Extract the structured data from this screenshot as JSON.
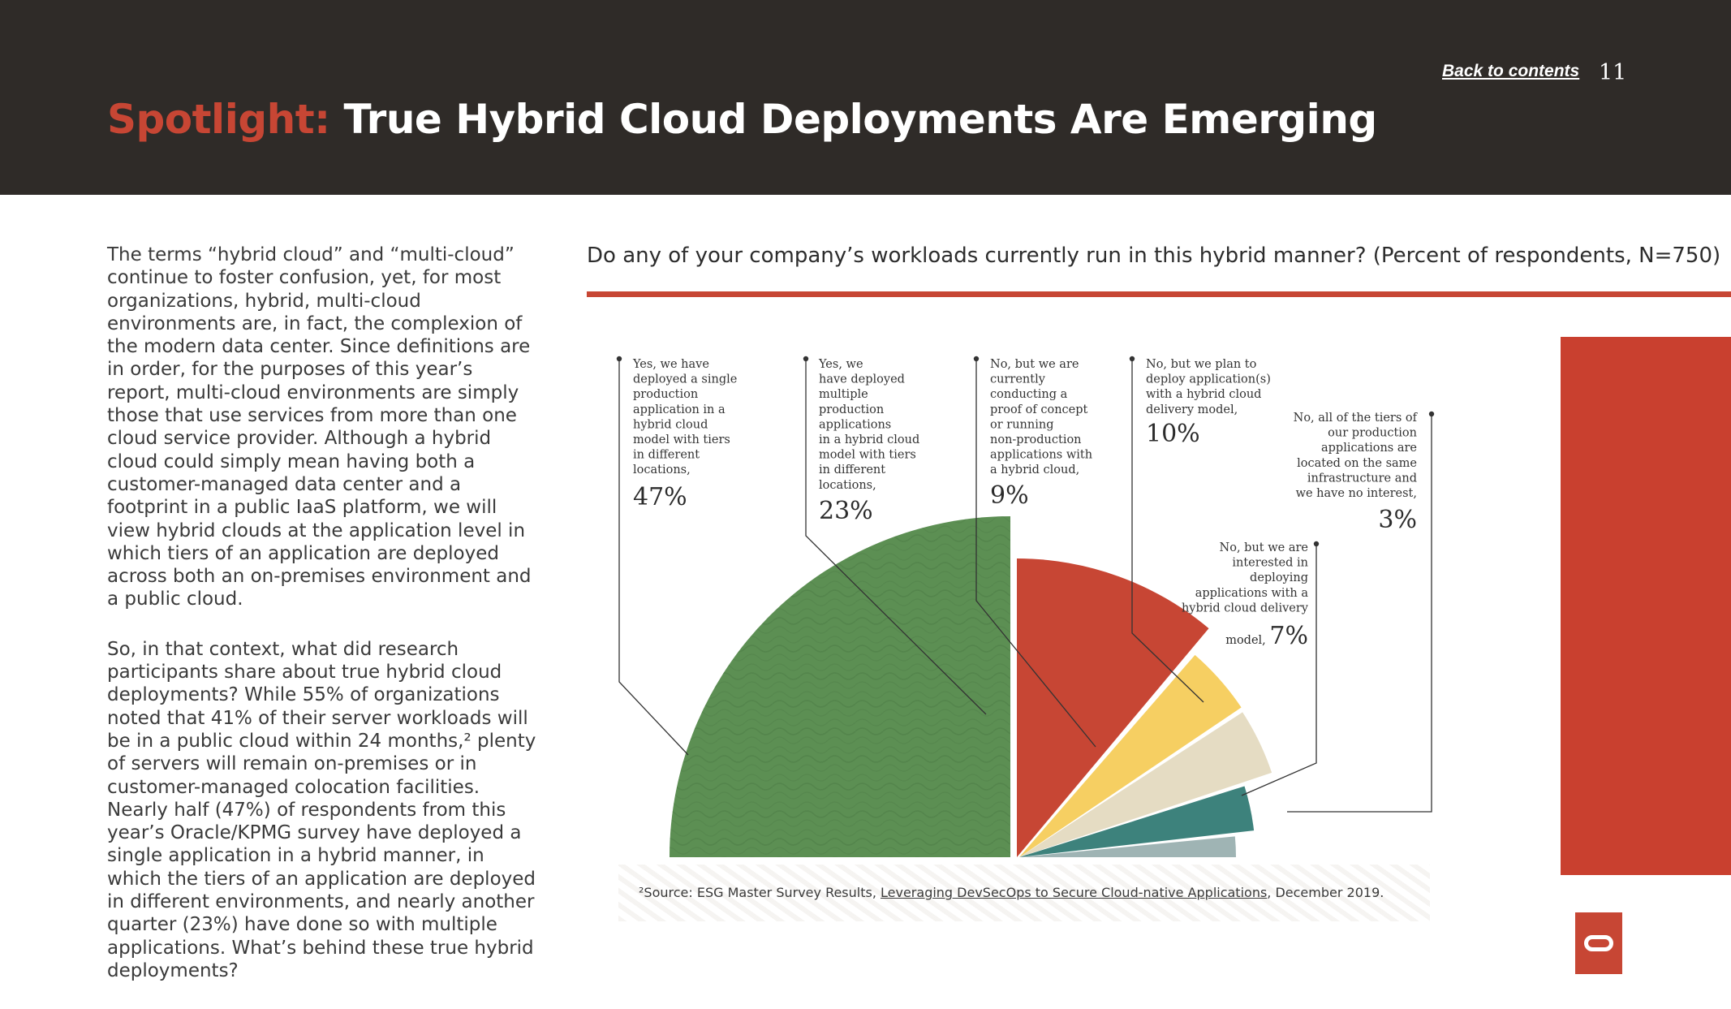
{
  "header": {
    "title_accent": "Spotlight:",
    "title_rest": "True Hybrid Cloud Deployments Are Emerging",
    "back_link": "Back to contents",
    "page_number": "11"
  },
  "body": {
    "paragraph1": "The terms “hybrid cloud” and “multi-cloud” continue to foster confusion, yet, for most organizations, hybrid, multi-cloud environments are, in fact, the complexion of the modern data center. Since definitions are in order, for the purposes of this year’s report, multi-cloud environments are simply those that use services from more than one cloud service provider. Although a hybrid cloud could simply mean having both a customer-managed data center and a footprint in a public IaaS platform, we will view hybrid clouds at the application level in which tiers of an application are deployed across both an on-premises environment and a public cloud.",
    "paragraph2": "So, in that context, what did research participants share about true hybrid cloud deployments? While 55% of organizations noted that 41% of their server workloads will be in a public cloud within 24 months,² plenty of servers will remain on-premises or in customer-managed colocation facilities. Nearly half (47%) of respondents from this year’s Oracle/KPMG survey have deployed a single application in a hybrid manner, in which the tiers of an application are deployed in different environments, and nearly another quarter (23%) have done so with multiple applications. What’s behind these true hybrid deployments?"
  },
  "chart_data": {
    "type": "pie",
    "title": "Do any of your company’s workloads currently run in this hybrid manner? (Percent of respondents, N=750)",
    "categories": [
      "Yes, we have deployed a single production application in a hybrid cloud model with tiers in different locations,",
      "Yes, we have deployed multiple production applications in a hybrid cloud model with tiers in different locations,",
      "No, but we are currently conducting a proof of concept or running non-production applications with a hybrid cloud,",
      "No, but we plan to deploy application(s) with a hybrid cloud delivery model,",
      "No, but we are interested in deploying applications with a hybrid cloud delivery model,",
      "No, all of the tiers of our production applications are located on the same infrastructure and we have no interest,"
    ],
    "values": [
      47,
      23,
      9,
      10,
      7,
      3
    ],
    "value_labels": [
      "47%",
      "23%",
      "9%",
      "10%",
      "7%",
      "3%"
    ],
    "colors": [
      "#5c8f53",
      "#c74634",
      "#f6cf62",
      "#e5dcc3",
      "#3d827c",
      "#9fb4b4"
    ]
  },
  "label_lines": [
    [
      "Yes, we have",
      "deployed a single",
      "production",
      "application in a",
      "hybrid cloud",
      "model with tiers",
      "in different",
      "locations,"
    ],
    [
      "Yes, we",
      "have deployed",
      "multiple",
      "production",
      "applications",
      "in a hybrid cloud",
      "model with tiers",
      "in different",
      "locations,"
    ],
    [
      "No, but we are",
      "currently",
      "conducting a",
      "proof of concept",
      "or running",
      "non-production",
      "applications with",
      "a hybrid cloud,"
    ],
    [
      "No, but we plan to",
      "deploy application(s)",
      "with a hybrid cloud",
      "delivery model,"
    ],
    [
      "No, but we are",
      "interested in",
      "deploying",
      "applications with a",
      "hybrid cloud delivery",
      "model,"
    ],
    [
      "No, all of the tiers of",
      "our production",
      "applications are",
      "located on the same",
      "infrastructure and",
      "we have no interest,"
    ]
  ],
  "footnote": {
    "prefix": "²Source: ESG Master Survey Results, ",
    "link": "Leveraging DevSecOps to Secure Cloud-native Applications",
    "suffix": ", December 2019."
  }
}
